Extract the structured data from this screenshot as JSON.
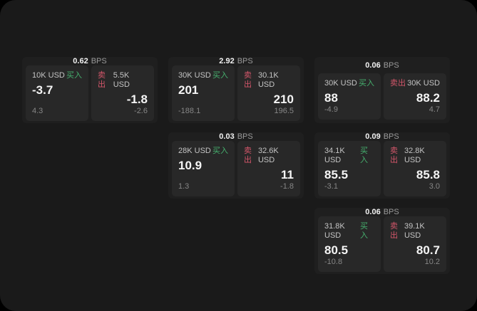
{
  "labels": {
    "buy_tag": "买入",
    "sell_tag": "卖出",
    "bps_unit": "BPS"
  },
  "colors": {
    "window_bg": "#1a1a1a",
    "card_bg": "#1f1f1f",
    "panel_bg": "#282828",
    "buy_green": "#46b06e",
    "sell_red": "#d4566a"
  },
  "cards": [
    {
      "bps": "0.62",
      "buy": {
        "amount": "10K USD",
        "price": "-3.7",
        "sub": "4.3"
      },
      "sell": {
        "amount": "5.5K USD",
        "price": "-1.8",
        "sub": "-2.6"
      }
    },
    {
      "bps": "2.92",
      "buy": {
        "amount": "30K USD",
        "price": "201",
        "sub": "-188.1"
      },
      "sell": {
        "amount": "30.1K USD",
        "price": "210",
        "sub": "196.5"
      }
    },
    {
      "bps": "0.06",
      "buy": {
        "amount": "30K USD",
        "price": "88",
        "sub": "-4.9"
      },
      "sell": {
        "amount": "30K USD",
        "price": "88.2",
        "sub": "4.7"
      }
    },
    {
      "bps": "0.03",
      "buy": {
        "amount": "28K USD",
        "price": "10.9",
        "sub": "1.3"
      },
      "sell": {
        "amount": "32.6K USD",
        "price": "11",
        "sub": "-1.8"
      }
    },
    {
      "bps": "0.09",
      "buy": {
        "amount": "34.1K USD",
        "price": "85.5",
        "sub": "-3.1"
      },
      "sell": {
        "amount": "32.8K USD",
        "price": "85.8",
        "sub": "3.0"
      }
    },
    {
      "bps": "0.06",
      "buy": {
        "amount": "31.8K USD",
        "price": "80.5",
        "sub": "-10.8"
      },
      "sell": {
        "amount": "39.1K USD",
        "price": "80.7",
        "sub": "10.2"
      }
    }
  ]
}
